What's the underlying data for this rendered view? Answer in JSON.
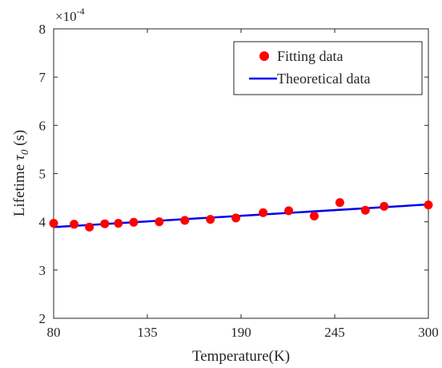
{
  "chart_data": {
    "type": "scatter",
    "title": "",
    "xlabel": "Temperature(K)",
    "ylabel": "Lifetime τ_0 (s)",
    "ylabel_parts": {
      "main": "Lifetime ",
      "symbol": "τ",
      "subscript": "0",
      "unit": " (s)"
    },
    "y_multiplier": {
      "base": "×10",
      "exponent": "-4"
    },
    "xlim": [
      80,
      300
    ],
    "ylim": [
      2,
      8
    ],
    "x_ticks": [
      80,
      135,
      190,
      245,
      300
    ],
    "y_ticks": [
      2,
      3,
      4,
      5,
      6,
      7,
      8
    ],
    "grid": false,
    "legend_position": "top-right",
    "series": [
      {
        "name": "Fitting data",
        "kind": "markers",
        "color": "#ff0000",
        "x": [
          80,
          92,
          101,
          110,
          118,
          127,
          142,
          157,
          172,
          187,
          203,
          218,
          233,
          248,
          263,
          274,
          300
        ],
        "y": [
          3.97,
          3.95,
          3.89,
          3.96,
          3.97,
          3.99,
          4.0,
          4.03,
          4.05,
          4.08,
          4.19,
          4.23,
          4.12,
          4.4,
          4.24,
          4.32,
          4.35
        ]
      },
      {
        "name": "Theoretical data",
        "kind": "line",
        "color": "#0000ee",
        "x": [
          80,
          300
        ],
        "y": [
          3.89,
          4.36
        ]
      }
    ]
  }
}
